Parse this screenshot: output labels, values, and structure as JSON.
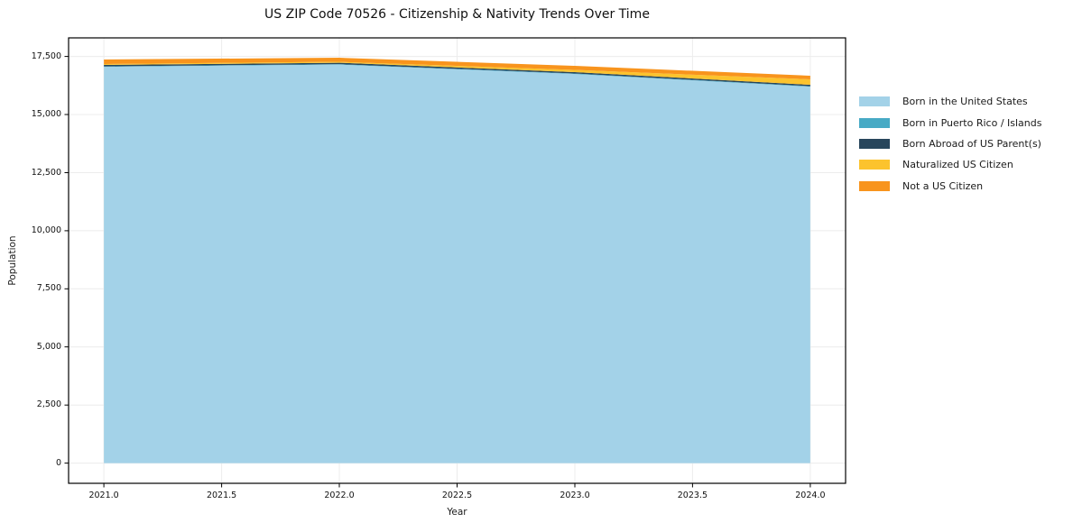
{
  "title": "US ZIP Code 70526 - Citizenship & Nativity Trends Over Time",
  "chart_data": {
    "type": "area",
    "stacked": true,
    "title": "US ZIP Code 70526 - Citizenship & Nativity Trends Over Time",
    "xlabel": "Year",
    "ylabel": "Population",
    "x": [
      2021,
      2022,
      2023,
      2024
    ],
    "series": [
      {
        "name": "Born in the United States",
        "color": "#a3d2e8",
        "values": [
          17055,
          17150,
          16745,
          16200
        ]
      },
      {
        "name": "Born in Puerto Rico / Islands",
        "color": "#47aac5",
        "values": [
          20,
          20,
          20,
          20
        ]
      },
      {
        "name": "Born Abroad of US Parent(s)",
        "color": "#28465c",
        "values": [
          60,
          60,
          60,
          60
        ]
      },
      {
        "name": "Naturalized US Citizen",
        "color": "#fcc32d",
        "values": [
          40,
          40,
          95,
          235
        ]
      },
      {
        "name": "Not a US Citizen",
        "color": "#f8941d",
        "values": [
          195,
          175,
          175,
          155
        ]
      }
    ],
    "xlim": [
      2020.85,
      2024.15
    ],
    "ylim": [
      -870,
      18300
    ],
    "xticks": [
      2021.0,
      2021.5,
      2022.0,
      2022.5,
      2023.0,
      2023.5,
      2024.0
    ],
    "xtick_labels": [
      "2021.0",
      "2021.5",
      "2022.0",
      "2022.5",
      "2023.0",
      "2023.5",
      "2024.0"
    ],
    "yticks": [
      0,
      2500,
      5000,
      7500,
      10000,
      12500,
      15000,
      17500
    ],
    "ytick_labels": [
      "0",
      "2,500",
      "5,000",
      "7,500",
      "10,000",
      "12,500",
      "15,000",
      "17,500"
    ],
    "grid": true,
    "legend_position": "right-outside",
    "colors": {
      "grid": "#ececec",
      "spine": "#000000",
      "text": "#1a1a1a"
    }
  }
}
